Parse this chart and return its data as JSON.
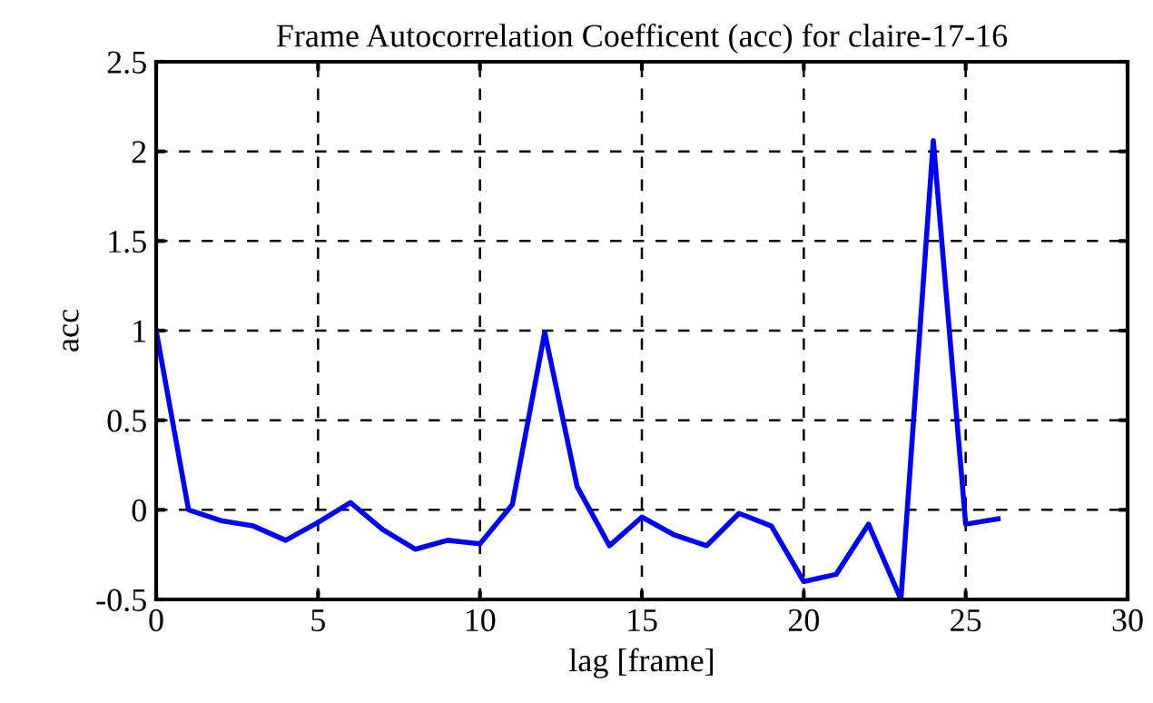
{
  "chart_data": {
    "type": "line",
    "title": "Frame Autocorrelation Coefficent (acc) for claire-17-16",
    "xlabel": "lag [frame]",
    "ylabel": "acc",
    "x": [
      0,
      1,
      2,
      3,
      4,
      5,
      6,
      7,
      8,
      9,
      10,
      11,
      12,
      13,
      14,
      15,
      16,
      17,
      18,
      19,
      20,
      21,
      22,
      23,
      24,
      25,
      26
    ],
    "series": [
      {
        "color": "#0000ff",
        "values": [
          1.0,
          0.0,
          -0.06,
          -0.09,
          -0.17,
          -0.07,
          0.04,
          -0.11,
          -0.22,
          -0.17,
          -0.19,
          0.03,
          0.99,
          0.13,
          -0.2,
          -0.04,
          -0.14,
          -0.2,
          -0.02,
          -0.09,
          -0.4,
          -0.36,
          -0.08,
          -0.5,
          2.06,
          -0.08,
          -0.05
        ]
      }
    ],
    "xlim": [
      0,
      30
    ],
    "ylim": [
      -0.5,
      2.5
    ],
    "xticks": [
      0,
      5,
      10,
      15,
      20,
      25,
      30
    ],
    "yticks": [
      -0.5,
      0,
      0.5,
      1,
      1.5,
      2,
      2.5
    ],
    "grid": true,
    "line_style": "solid",
    "marker": "none"
  }
}
